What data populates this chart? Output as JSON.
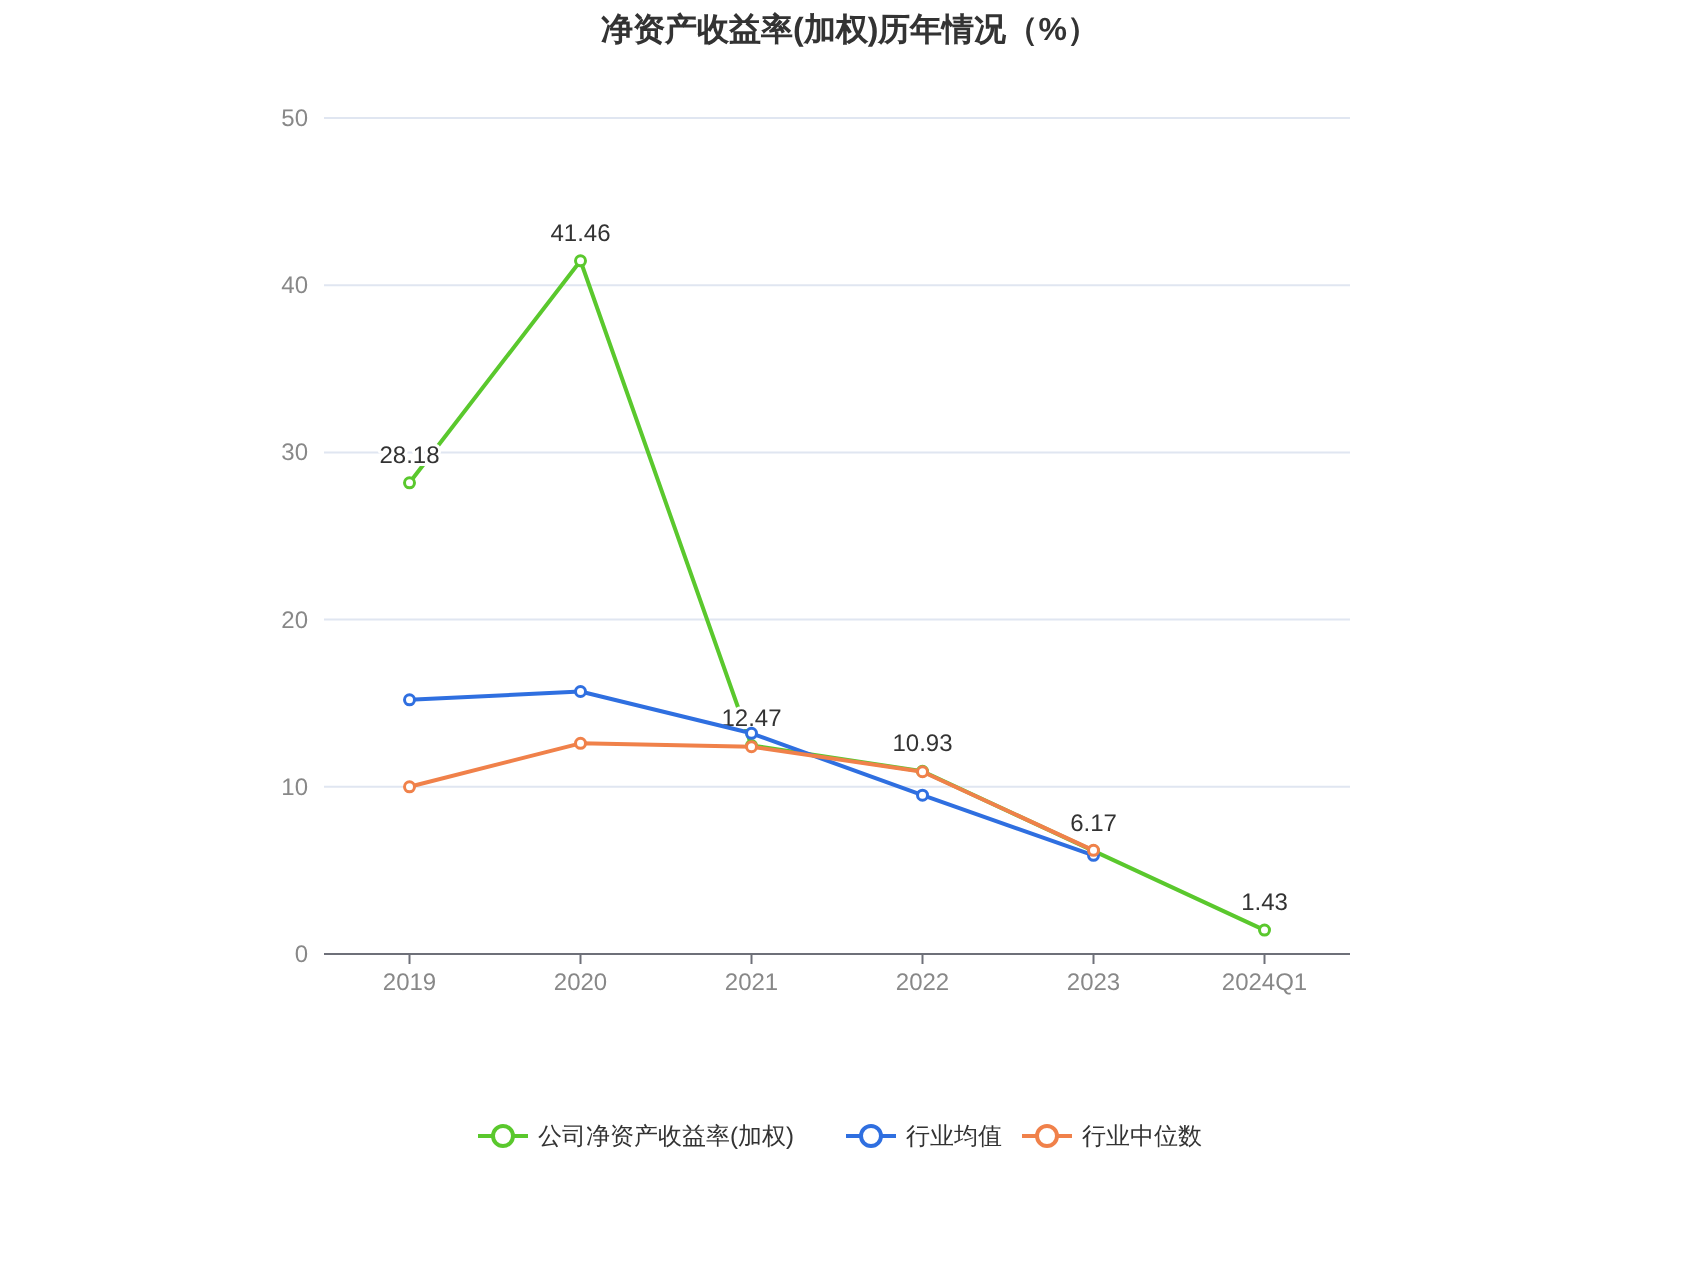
{
  "chart_data": {
    "type": "line",
    "title": "净资产收益率(加权)历年情况（%）",
    "categories": [
      "2019",
      "2020",
      "2021",
      "2022",
      "2023",
      "2024Q1"
    ],
    "series": [
      {
        "name": "公司净资产收益率(加权)",
        "color": "#5ac82d",
        "values": [
          28.18,
          41.46,
          12.47,
          10.93,
          6.17,
          1.43
        ],
        "value_labels": [
          "28.18",
          "41.46",
          "12.47",
          "10.93",
          "6.17",
          "1.43"
        ]
      },
      {
        "name": "行业均值",
        "color": "#2f6fe0",
        "values": [
          15.2,
          15.7,
          13.2,
          9.5,
          5.9,
          null
        ]
      },
      {
        "name": "行业中位数",
        "color": "#f0814a",
        "values": [
          10.0,
          12.6,
          12.4,
          10.9,
          6.2,
          null
        ]
      }
    ],
    "ylim": [
      0,
      50
    ],
    "yticks": [
      0,
      10,
      20,
      30,
      40,
      50
    ],
    "grid": "y",
    "legend": "bottom",
    "marker": "circle"
  }
}
